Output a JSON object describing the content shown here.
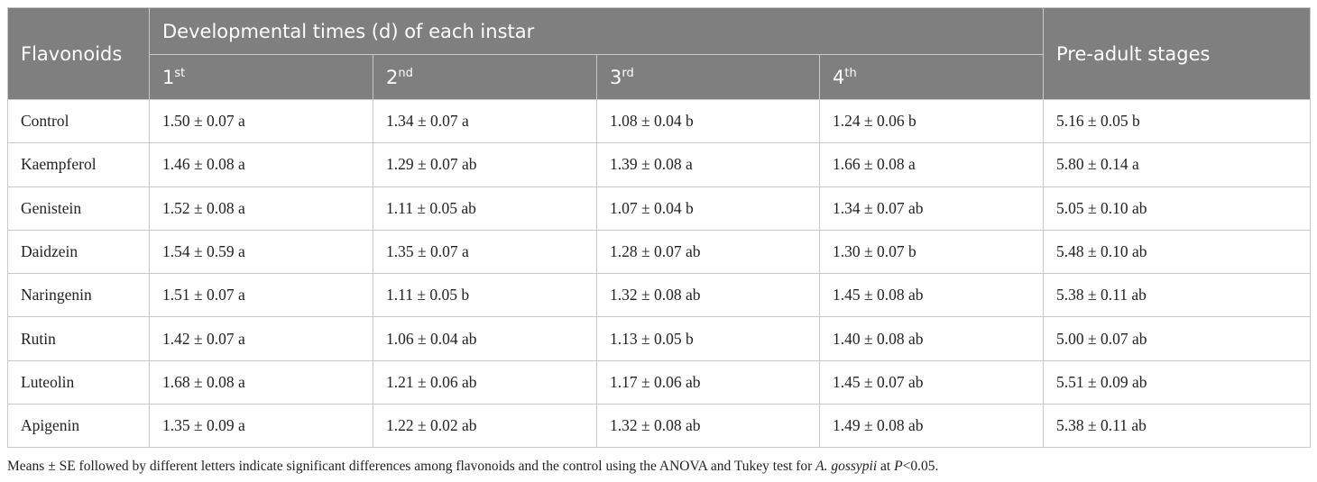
{
  "table": {
    "header": {
      "flavonoids": "Flavonoids",
      "group": "Developmental times (d) of each instar",
      "instars": [
        {
          "n": "1",
          "sup": "st"
        },
        {
          "n": "2",
          "sup": "nd"
        },
        {
          "n": "3",
          "sup": "rd"
        },
        {
          "n": "4",
          "sup": "th"
        }
      ],
      "pre_adult": "Pre-adult stages"
    },
    "rows": [
      [
        "Control",
        "1.50 ± 0.07 a",
        "1.34 ± 0.07 a",
        "1.08 ± 0.04 b",
        "1.24 ± 0.06 b",
        "5.16 ± 0.05 b"
      ],
      [
        "Kaempferol",
        "1.46 ± 0.08 a",
        "1.29 ± 0.07 ab",
        "1.39 ± 0.08 a",
        "1.66 ± 0.08 a",
        "5.80 ± 0.14 a"
      ],
      [
        "Genistein",
        "1.52 ± 0.08 a",
        "1.11 ± 0.05 ab",
        "1.07 ± 0.04 b",
        "1.34 ± 0.07 ab",
        "5.05 ± 0.10 ab"
      ],
      [
        "Daidzein",
        "1.54 ± 0.59 a",
        "1.35 ± 0.07 a",
        "1.28 ± 0.07 ab",
        "1.30 ± 0.07 b",
        "5.48 ± 0.10 ab"
      ],
      [
        "Naringenin",
        "1.51 ± 0.07 a",
        "1.11 ± 0.05 b",
        "1.32 ± 0.08 ab",
        "1.45 ± 0.08 ab",
        "5.38 ± 0.11 ab"
      ],
      [
        "Rutin",
        "1.42 ± 0.07 a",
        "1.06 ± 0.04 ab",
        "1.13 ± 0.05 b",
        "1.40 ± 0.08 ab",
        "5.00 ± 0.07 ab"
      ],
      [
        "Luteolin",
        "1.68 ± 0.08 a",
        "1.21 ± 0.06 ab",
        "1.17 ± 0.06 ab",
        "1.45 ± 0.07 ab",
        "5.51 ± 0.09 ab"
      ],
      [
        "Apigenin",
        "1.35 ± 0.09 a",
        "1.22 ± 0.02 ab",
        "1.32 ± 0.08 ab",
        "1.49 ± 0.08 ab",
        "5.38 ± 0.11 ab"
      ]
    ]
  },
  "footnote": {
    "parts": [
      "Means ± SE followed by different letters indicate significant differences among flavonoids and the control using the ANOVA and Tukey test for ",
      "A. gossypii",
      " at ",
      "P",
      "<0.05."
    ]
  }
}
